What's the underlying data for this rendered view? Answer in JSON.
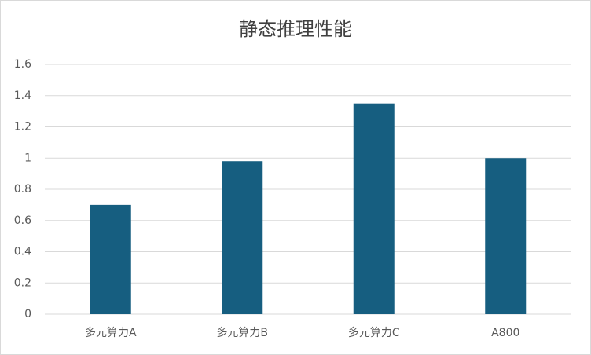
{
  "chart_data": {
    "type": "bar",
    "title": "静态推理性能",
    "categories": [
      "多元算力A",
      "多元算力B",
      "多元算力C",
      "A800"
    ],
    "values": [
      0.7,
      0.98,
      1.35,
      1.0
    ],
    "color": "#165e80",
    "ylim": [
      0,
      1.6
    ],
    "yticks": [
      0,
      0.2,
      0.4,
      0.6,
      0.8,
      1,
      1.2,
      1.4,
      1.6
    ],
    "grid": true
  }
}
